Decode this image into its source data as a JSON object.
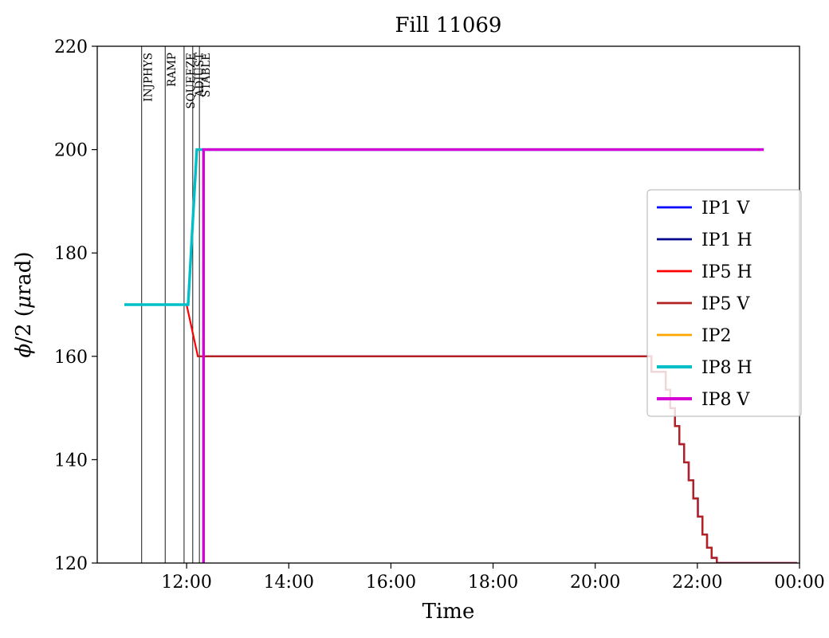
{
  "chart_data": {
    "type": "line",
    "title": "Fill 11069",
    "xlabel": "Time",
    "ylabel": {
      "phi": "ϕ",
      "mid": "/2 (",
      "mu": "μ",
      "end": "rad)"
    },
    "ylim": [
      120,
      220
    ],
    "xlim": [
      10.25,
      24.0
    ],
    "yticks": [
      120,
      140,
      160,
      180,
      200,
      220
    ],
    "xticks": [
      {
        "t": 12,
        "label": "12:00"
      },
      {
        "t": 14,
        "label": "14:00"
      },
      {
        "t": 16,
        "label": "16:00"
      },
      {
        "t": 18,
        "label": "18:00"
      },
      {
        "t": 20,
        "label": "20:00"
      },
      {
        "t": 22,
        "label": "22:00"
      },
      {
        "t": 24,
        "label": "00:00"
      }
    ],
    "grid": false,
    "legend_position": "center-right",
    "beam_modes": [
      {
        "t": 11.12,
        "label": "INJPHYS"
      },
      {
        "t": 11.58,
        "label": "RAMP"
      },
      {
        "t": 11.95,
        "label": "SQUEEZE"
      },
      {
        "t": 12.12,
        "label": "ADJUST"
      },
      {
        "t": 12.25,
        "label": "STABLE"
      }
    ],
    "stairs": [
      [
        21.05,
        160
      ],
      [
        21.1,
        160
      ],
      [
        21.1,
        157
      ],
      [
        21.38,
        157
      ],
      [
        21.38,
        153.5
      ],
      [
        21.47,
        153.5
      ],
      [
        21.47,
        150
      ],
      [
        21.56,
        150
      ],
      [
        21.56,
        146.5
      ],
      [
        21.65,
        146.5
      ],
      [
        21.65,
        143
      ],
      [
        21.74,
        143
      ],
      [
        21.74,
        139.5
      ],
      [
        21.83,
        139.5
      ],
      [
        21.83,
        136
      ],
      [
        21.92,
        136
      ],
      [
        21.92,
        132.5
      ],
      [
        22.01,
        132.5
      ],
      [
        22.01,
        129
      ],
      [
        22.1,
        129
      ],
      [
        22.1,
        125.5
      ],
      [
        22.19,
        125.5
      ],
      [
        22.19,
        123
      ],
      [
        22.28,
        123
      ],
      [
        22.28,
        121
      ],
      [
        22.38,
        121
      ],
      [
        22.38,
        120
      ],
      [
        23.95,
        120
      ]
    ],
    "series": [
      {
        "name": "IP1 V",
        "color": "#0000ff",
        "width": 2.2,
        "points": [
          [
            12.33,
            120
          ],
          [
            12.33,
            160
          ]
        ],
        "append_stairs": true
      },
      {
        "name": "IP1 H",
        "color": "#00008b",
        "width": 2.2,
        "points": [
          [
            12.33,
            120
          ],
          [
            12.33,
            160
          ]
        ],
        "append_stairs": true
      },
      {
        "name": "IP5 H",
        "color": "#ff0000",
        "width": 2.2,
        "points": [
          [
            10.78,
            170
          ],
          [
            12.0,
            170
          ],
          [
            12.22,
            160
          ]
        ],
        "append_stairs": true
      },
      {
        "name": "IP5 V",
        "color": "#b22222",
        "width": 2.2,
        "points": [
          [
            12.22,
            160
          ]
        ],
        "append_stairs": true
      },
      {
        "name": "IP2",
        "color": "#ffa500",
        "width": 2.2,
        "points": [
          [
            12.33,
            120
          ],
          [
            12.33,
            200
          ],
          [
            23.3,
            200
          ]
        ],
        "append_stairs": false
      },
      {
        "name": "IP8 H",
        "color": "#00bfc8",
        "width": 3.4,
        "points": [
          [
            10.78,
            170
          ],
          [
            12.03,
            170
          ],
          [
            12.2,
            200
          ],
          [
            23.3,
            200
          ]
        ],
        "append_stairs": false
      },
      {
        "name": "IP8 V",
        "color": "#d400d4",
        "width": 3.4,
        "points": [
          [
            12.33,
            120
          ],
          [
            12.33,
            200
          ],
          [
            23.3,
            200
          ]
        ],
        "append_stairs": false
      }
    ]
  }
}
